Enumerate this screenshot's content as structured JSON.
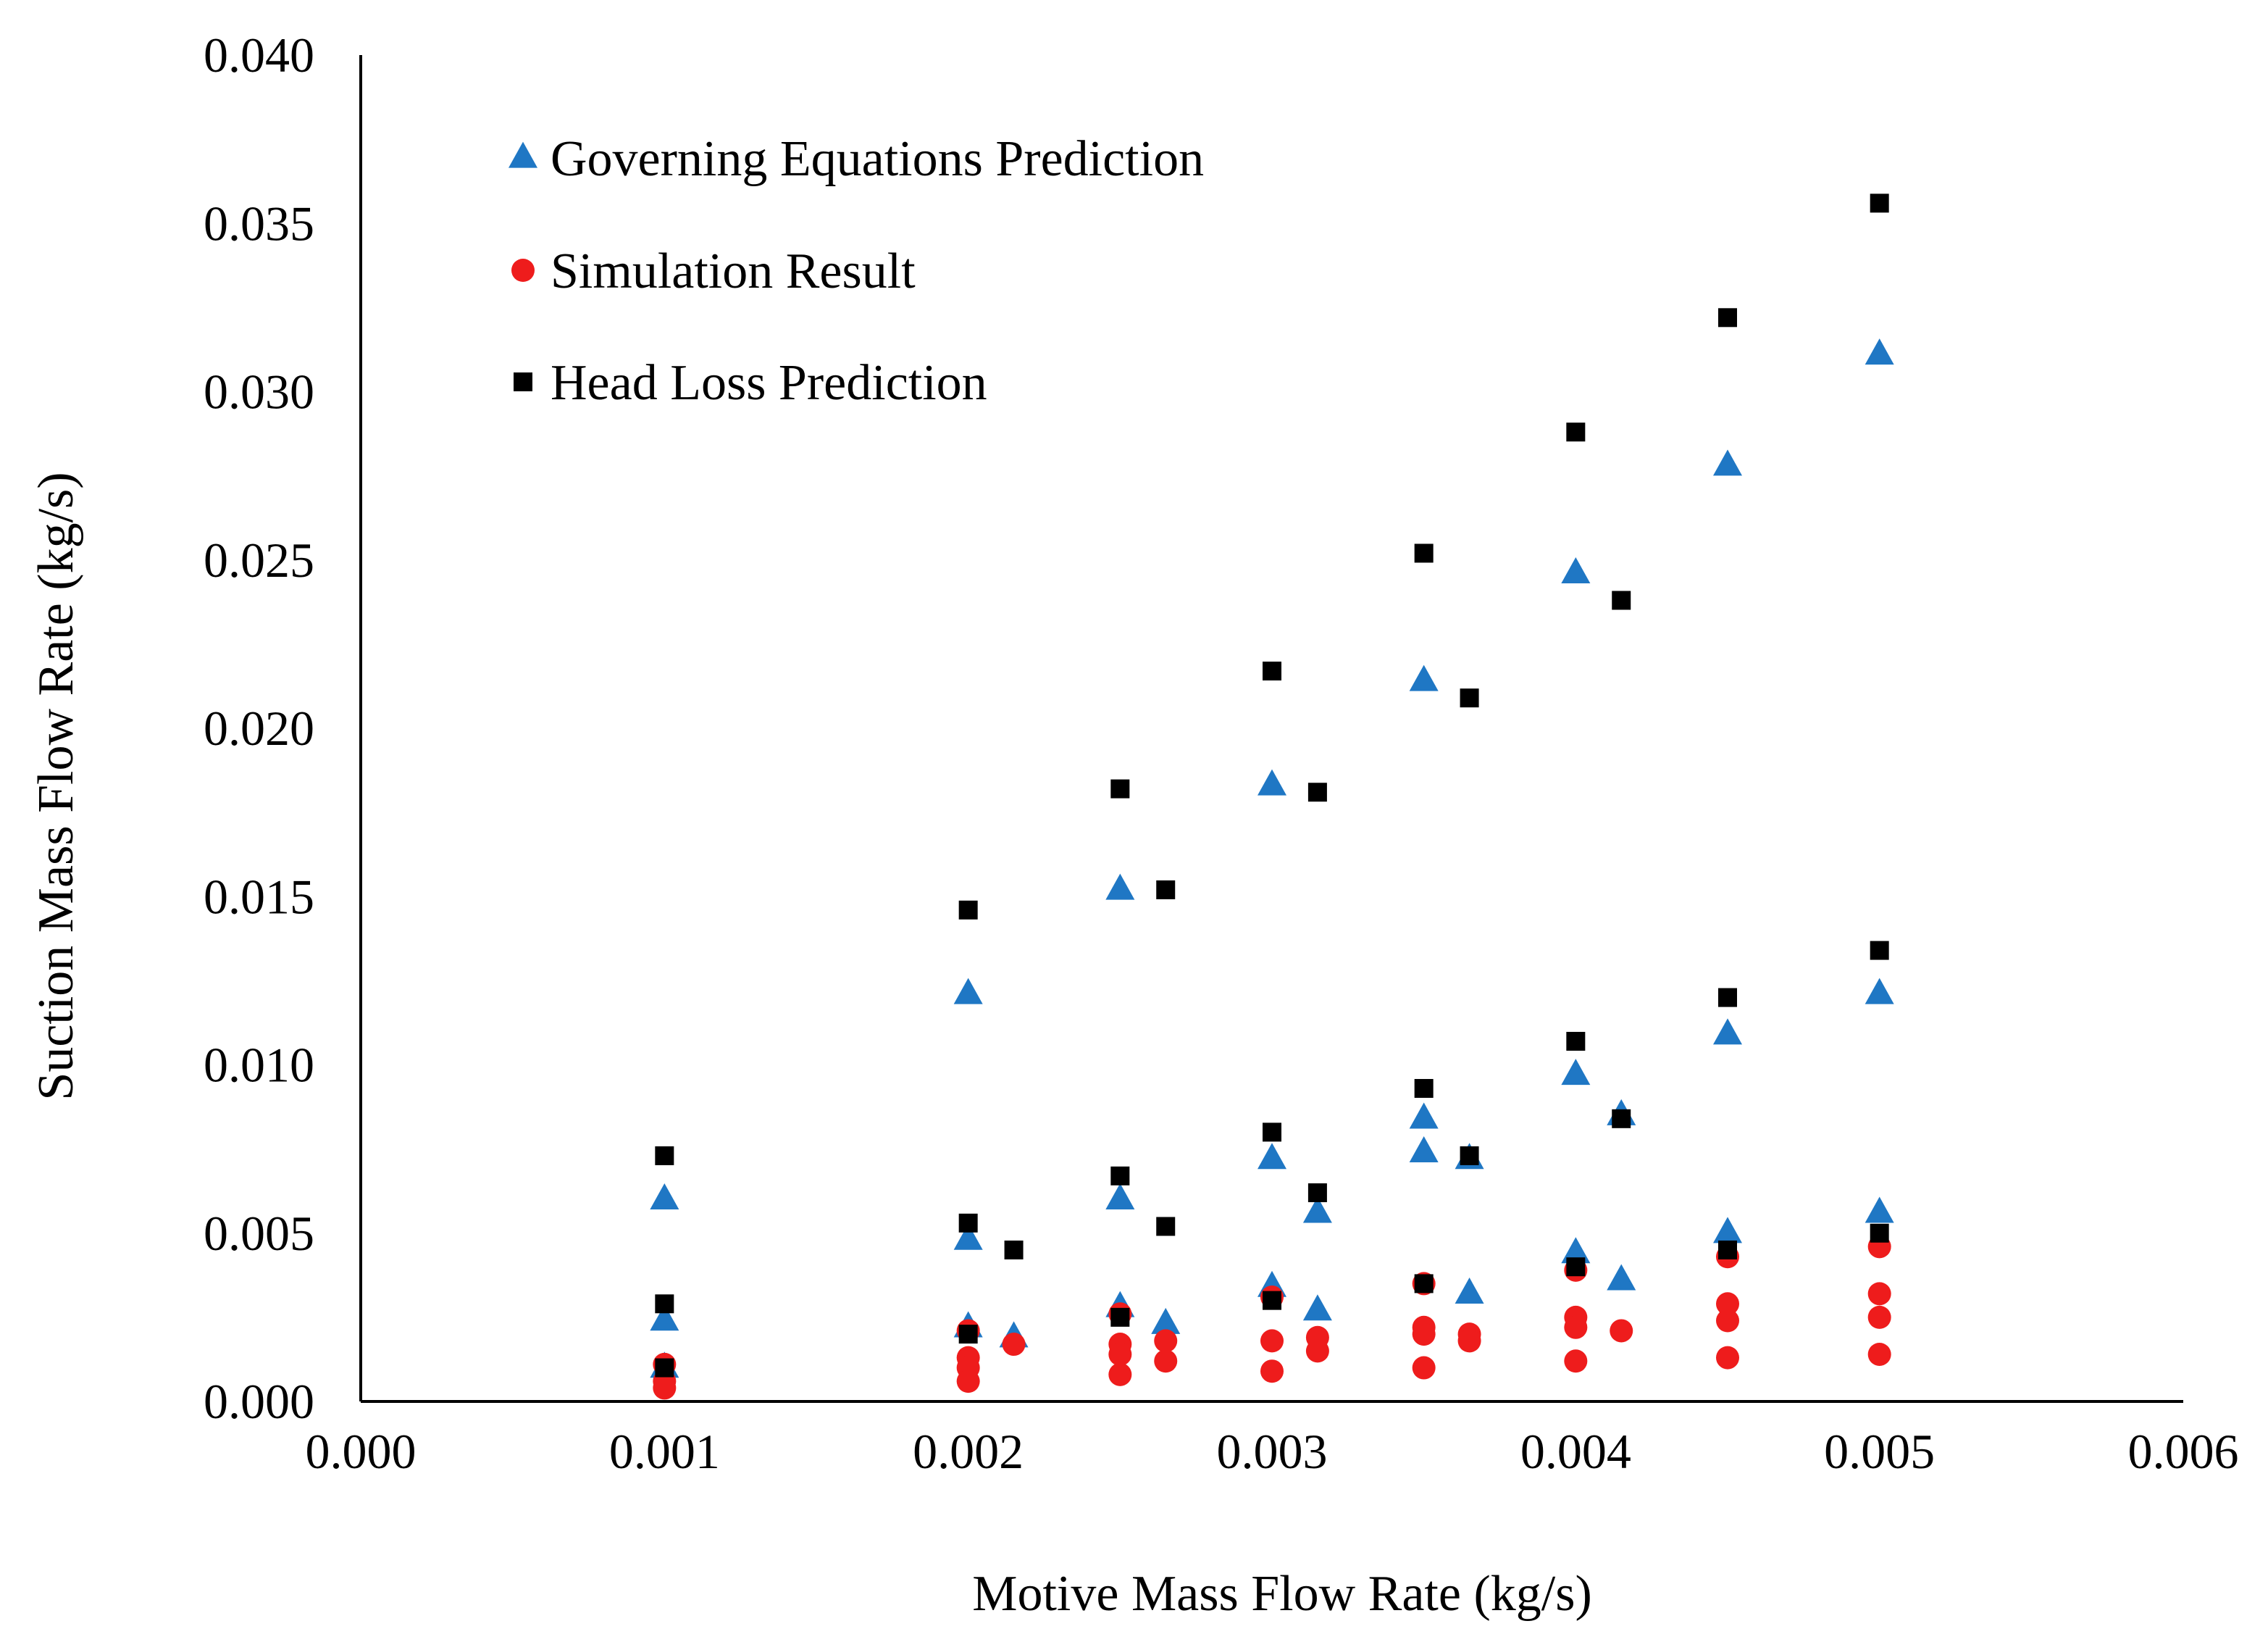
{
  "chart_data": {
    "type": "scatter",
    "title": "",
    "xlabel": "Motive Mass Flow Rate (kg/s)",
    "ylabel": "Suction Mass Flow Rate (kg/s)",
    "xlim": [
      0,
      0.006
    ],
    "ylim": [
      0,
      0.04
    ],
    "grid": false,
    "legend_position": "top-left",
    "x_ticks": [
      "0.000",
      "0.001",
      "0.002",
      "0.003",
      "0.004",
      "0.005",
      "0.006"
    ],
    "y_ticks": [
      "0.000",
      "0.005",
      "0.010",
      "0.015",
      "0.020",
      "0.025",
      "0.030",
      "0.035",
      "0.040"
    ],
    "series": [
      {
        "name": "Governing Equations Prediction",
        "marker": "triangle",
        "color": "#1f77c4",
        "points": [
          [
            0.001,
            0.006
          ],
          [
            0.001,
            0.0024
          ],
          [
            0.001,
            0.001
          ],
          [
            0.002,
            0.0121
          ],
          [
            0.002,
            0.0048
          ],
          [
            0.002,
            0.0022
          ],
          [
            0.00215,
            0.0019
          ],
          [
            0.0025,
            0.0152
          ],
          [
            0.0025,
            0.006
          ],
          [
            0.0025,
            0.0028
          ],
          [
            0.00265,
            0.0023
          ],
          [
            0.003,
            0.0183
          ],
          [
            0.003,
            0.0072
          ],
          [
            0.003,
            0.0034
          ],
          [
            0.00315,
            0.0056
          ],
          [
            0.00315,
            0.0027
          ],
          [
            0.0035,
            0.0214
          ],
          [
            0.0035,
            0.0084
          ],
          [
            0.0035,
            0.0074
          ],
          [
            0.00365,
            0.0072
          ],
          [
            0.00365,
            0.0032
          ],
          [
            0.004,
            0.0246
          ],
          [
            0.004,
            0.0097
          ],
          [
            0.004,
            0.0044
          ],
          [
            0.00415,
            0.0085
          ],
          [
            0.00415,
            0.0036
          ],
          [
            0.0045,
            0.0278
          ],
          [
            0.0045,
            0.0109
          ],
          [
            0.0045,
            0.005
          ],
          [
            0.005,
            0.0311
          ],
          [
            0.005,
            0.0121
          ],
          [
            0.005,
            0.0056
          ]
        ]
      },
      {
        "name": "Simulation Result",
        "marker": "circle",
        "color": "#ee1c1c",
        "points": [
          [
            0.001,
            0.0011
          ],
          [
            0.001,
            0.0006
          ],
          [
            0.001,
            0.0004
          ],
          [
            0.002,
            0.0021
          ],
          [
            0.002,
            0.0013
          ],
          [
            0.002,
            0.001
          ],
          [
            0.002,
            0.0006
          ],
          [
            0.00215,
            0.0017
          ],
          [
            0.0025,
            0.0026
          ],
          [
            0.0025,
            0.0017
          ],
          [
            0.0025,
            0.0014
          ],
          [
            0.0025,
            0.0008
          ],
          [
            0.00265,
            0.0018
          ],
          [
            0.00265,
            0.0012
          ],
          [
            0.003,
            0.0031
          ],
          [
            0.003,
            0.0018
          ],
          [
            0.003,
            0.0009
          ],
          [
            0.00315,
            0.0019
          ],
          [
            0.00315,
            0.0015
          ],
          [
            0.0035,
            0.0035
          ],
          [
            0.0035,
            0.0022
          ],
          [
            0.0035,
            0.002
          ],
          [
            0.0035,
            0.001
          ],
          [
            0.00365,
            0.002
          ],
          [
            0.00365,
            0.0018
          ],
          [
            0.004,
            0.0039
          ],
          [
            0.004,
            0.0025
          ],
          [
            0.004,
            0.0022
          ],
          [
            0.004,
            0.0012
          ],
          [
            0.00415,
            0.0021
          ],
          [
            0.0045,
            0.0043
          ],
          [
            0.0045,
            0.0029
          ],
          [
            0.0045,
            0.0024
          ],
          [
            0.0045,
            0.0013
          ],
          [
            0.005,
            0.0046
          ],
          [
            0.005,
            0.0032
          ],
          [
            0.005,
            0.0025
          ],
          [
            0.005,
            0.0014
          ]
        ]
      },
      {
        "name": "Head Loss Prediction",
        "marker": "square",
        "color": "#000000",
        "points": [
          [
            0.001,
            0.0073
          ],
          [
            0.001,
            0.0029
          ],
          [
            0.001,
            0.001
          ],
          [
            0.002,
            0.0146
          ],
          [
            0.002,
            0.0053
          ],
          [
            0.002,
            0.002
          ],
          [
            0.00215,
            0.0045
          ],
          [
            0.0025,
            0.0182
          ],
          [
            0.0025,
            0.0067
          ],
          [
            0.0025,
            0.0025
          ],
          [
            0.00265,
            0.0152
          ],
          [
            0.00265,
            0.0052
          ],
          [
            0.003,
            0.0217
          ],
          [
            0.003,
            0.008
          ],
          [
            0.003,
            0.003
          ],
          [
            0.00315,
            0.0181
          ],
          [
            0.00315,
            0.0062
          ],
          [
            0.0035,
            0.0252
          ],
          [
            0.0035,
            0.0093
          ],
          [
            0.0035,
            0.0035
          ],
          [
            0.00365,
            0.0209
          ],
          [
            0.00365,
            0.0073
          ],
          [
            0.004,
            0.0288
          ],
          [
            0.004,
            0.0107
          ],
          [
            0.004,
            0.004
          ],
          [
            0.00415,
            0.0238
          ],
          [
            0.00415,
            0.0084
          ],
          [
            0.0045,
            0.0322
          ],
          [
            0.0045,
            0.012
          ],
          [
            0.0045,
            0.0045
          ],
          [
            0.005,
            0.0356
          ],
          [
            0.005,
            0.0134
          ],
          [
            0.005,
            0.005
          ]
        ]
      }
    ]
  }
}
